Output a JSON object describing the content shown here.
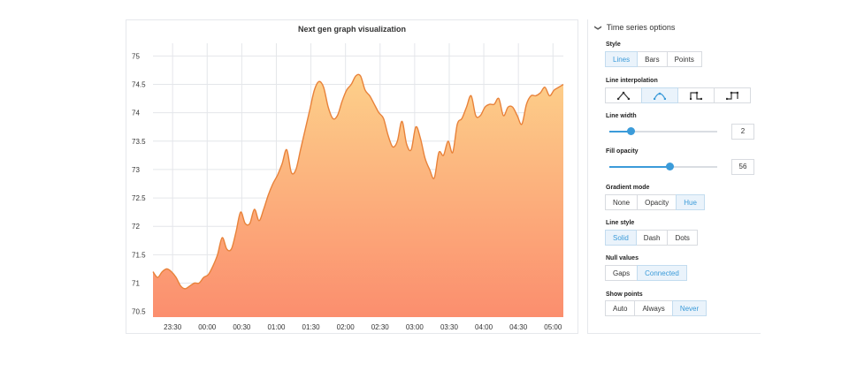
{
  "graph": {
    "title": "Next gen graph visualization",
    "chart_data": {
      "type": "area",
      "y_ticks": [
        "75",
        "74.5",
        "74",
        "73.5",
        "73",
        "72.5",
        "72",
        "71.5",
        "71",
        "70.5"
      ],
      "y_tick_values": [
        75,
        74.5,
        74,
        73.5,
        73,
        72.5,
        72,
        71.5,
        71,
        70.5
      ],
      "ylim": [
        70.4,
        75.1
      ],
      "x_ticks": [
        "23:30",
        "00:00",
        "00:30",
        "01:00",
        "01:30",
        "02:00",
        "02:30",
        "03:00",
        "03:30",
        "04:00",
        "04:30",
        "05:00"
      ],
      "x": [
        "23:13",
        "23:17",
        "23:21",
        "23:25",
        "23:29",
        "23:33",
        "23:37",
        "23:41",
        "23:45",
        "23:49",
        "23:53",
        "23:57",
        "00:01",
        "00:05",
        "00:09",
        "00:13",
        "00:17",
        "00:21",
        "00:25",
        "00:29",
        "00:33",
        "00:37",
        "00:41",
        "00:45",
        "00:49",
        "00:53",
        "00:57",
        "01:01",
        "01:05",
        "01:09",
        "01:13",
        "01:17",
        "01:21",
        "01:25",
        "01:29",
        "01:33",
        "01:37",
        "01:41",
        "01:45",
        "01:49",
        "01:53",
        "01:57",
        "02:01",
        "02:05",
        "02:09",
        "02:13",
        "02:17",
        "02:21",
        "02:25",
        "02:29",
        "02:33",
        "02:37",
        "02:41",
        "02:45",
        "02:49",
        "02:53",
        "02:57",
        "03:01",
        "03:05",
        "03:09",
        "03:13",
        "03:17",
        "03:21",
        "03:25",
        "03:29",
        "03:33",
        "03:37",
        "03:41",
        "03:45",
        "03:49",
        "03:53",
        "03:57",
        "04:01",
        "04:05",
        "04:09",
        "04:13",
        "04:17",
        "04:21",
        "04:25",
        "04:29",
        "04:33",
        "04:37",
        "04:41",
        "04:45",
        "04:49",
        "04:53",
        "04:57",
        "05:01",
        "05:05",
        "05:09"
      ],
      "values": [
        71.2,
        71.1,
        71.2,
        71.25,
        71.2,
        71.1,
        70.95,
        70.9,
        70.95,
        71.0,
        71.0,
        71.1,
        71.15,
        71.3,
        71.5,
        71.8,
        71.6,
        71.6,
        71.9,
        72.25,
        72.05,
        72.05,
        72.3,
        72.1,
        72.3,
        72.55,
        72.75,
        72.9,
        73.1,
        73.35,
        72.95,
        73.0,
        73.35,
        73.7,
        74.05,
        74.4,
        74.55,
        74.45,
        74.1,
        73.9,
        73.95,
        74.2,
        74.4,
        74.5,
        74.65,
        74.65,
        74.4,
        74.3,
        74.15,
        74.0,
        73.9,
        73.6,
        73.4,
        73.5,
        73.85,
        73.45,
        73.35,
        73.75,
        73.55,
        73.2,
        73.0,
        72.85,
        73.3,
        73.25,
        73.5,
        73.3,
        73.8,
        73.9,
        74.1,
        74.3,
        73.95,
        73.95,
        74.1,
        74.15,
        74.15,
        74.25,
        73.95,
        74.1,
        74.1,
        73.95,
        73.8,
        74.15,
        74.3,
        74.3,
        74.35,
        74.45,
        74.3,
        74.4,
        74.45,
        74.5
      ],
      "colors": {
        "line": "#e8823a",
        "fill_top": "#fdd08a",
        "fill_bottom": "#fb8e6e",
        "grid": "#e4e6ea",
        "tick_text": "#333333"
      },
      "grid": true
    }
  },
  "options": {
    "header": "Time series options",
    "style": {
      "label": "Style",
      "buttons": [
        "Lines",
        "Bars",
        "Points"
      ],
      "selected": "Lines"
    },
    "interpolation": {
      "label": "Line interpolation",
      "icons": [
        "linear-interpolation-icon",
        "smooth-interpolation-icon",
        "step-before-icon",
        "step-after-icon"
      ],
      "selected": 1
    },
    "line_width": {
      "label": "Line width",
      "value": "2",
      "fraction": 0.2
    },
    "fill_opacity": {
      "label": "Fill opacity",
      "value": "56",
      "fraction": 0.56
    },
    "gradient_mode": {
      "label": "Gradient mode",
      "buttons": [
        "None",
        "Opacity",
        "Hue"
      ],
      "selected": "Hue"
    },
    "line_style": {
      "label": "Line style",
      "buttons": [
        "Solid",
        "Dash",
        "Dots"
      ],
      "selected": "Solid"
    },
    "null_values": {
      "label": "Null values",
      "buttons": [
        "Gaps",
        "Connected"
      ],
      "selected": "Connected"
    },
    "show_points": {
      "label": "Show points",
      "buttons": [
        "Auto",
        "Always",
        "Never"
      ],
      "selected": "Never"
    },
    "accent": "#3b9bd9"
  }
}
